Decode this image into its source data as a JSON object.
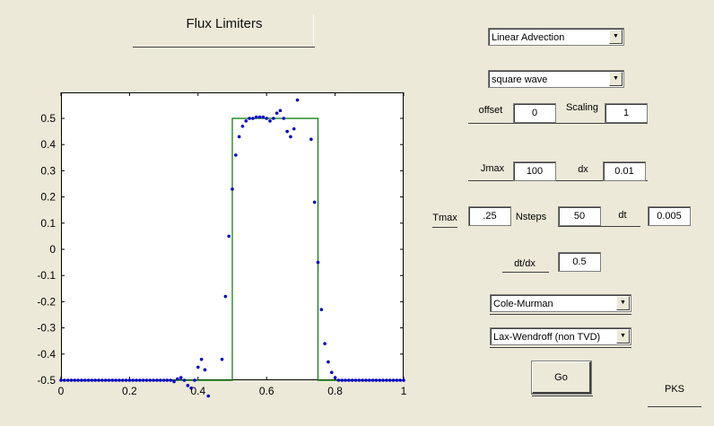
{
  "title": "Flux Limiters",
  "equation_select": "Linear Advection",
  "initial_select": "square wave",
  "offset": {
    "label": "offset",
    "value": "0"
  },
  "scaling": {
    "label": "Scaling",
    "value": "1"
  },
  "jmax": {
    "label": "Jmax",
    "value": "100"
  },
  "dx": {
    "label": "dx",
    "value": "0.01"
  },
  "tmax": {
    "label": "Tmax",
    "value": ".25"
  },
  "nsteps": {
    "label": "Nsteps",
    "value": "50"
  },
  "dt": {
    "label": "dt",
    "value": "0.005"
  },
  "dtdx": {
    "label": "dt/dx",
    "value": "0.5"
  },
  "limiter_select": "Cole-Murman",
  "scheme_select": "Lax-Wendroff (non TVD)",
  "go_label": "Go",
  "author": "PKS",
  "icons": {
    "dropdown": "chevron-down-icon"
  },
  "colors": {
    "exact": "#007700",
    "numerical": "#0000cc"
  },
  "chart_data": {
    "type": "scatter",
    "title": "",
    "xlabel": "",
    "ylabel": "",
    "xlim": [
      0,
      1
    ],
    "ylim": [
      -0.55,
      0.55
    ],
    "xticks": [
      "0",
      "0.2",
      "0.4",
      "0.6",
      "0.8",
      "1"
    ],
    "yticks": [
      "-0.5",
      "-0.4",
      "-0.3",
      "-0.2",
      "-0.1",
      "0",
      "0.1",
      "0.2",
      "0.3",
      "0.4",
      "0.5"
    ],
    "series": [
      {
        "style": "line",
        "x": [
          0,
          0.5,
          0.5,
          0.75,
          0.75,
          1
        ],
        "y": [
          -0.5,
          -0.5,
          0.5,
          0.5,
          -0.5,
          -0.5
        ]
      },
      {
        "style": "points",
        "x": [
          0.0,
          0.01,
          0.02,
          0.03,
          0.04,
          0.05,
          0.06,
          0.07,
          0.08,
          0.09,
          0.1,
          0.11,
          0.12,
          0.13,
          0.14,
          0.15,
          0.16,
          0.17,
          0.18,
          0.19,
          0.2,
          0.21,
          0.22,
          0.23,
          0.24,
          0.25,
          0.26,
          0.27,
          0.28,
          0.29,
          0.3,
          0.31,
          0.32,
          0.33,
          0.34,
          0.35,
          0.36,
          0.37,
          0.38,
          0.39,
          0.4,
          0.41,
          0.42,
          0.43,
          0.47,
          0.48,
          0.49,
          0.5,
          0.51,
          0.52,
          0.53,
          0.54,
          0.55,
          0.56,
          0.57,
          0.58,
          0.59,
          0.6,
          0.61,
          0.62,
          0.63,
          0.64,
          0.65,
          0.66,
          0.67,
          0.68,
          0.69,
          0.73,
          0.74,
          0.75,
          0.76,
          0.77,
          0.78,
          0.79,
          0.8,
          0.81,
          0.82,
          0.83,
          0.84,
          0.85,
          0.86,
          0.87,
          0.88,
          0.89,
          0.9,
          0.91,
          0.92,
          0.93,
          0.94,
          0.95,
          0.96,
          0.97,
          0.98,
          0.99,
          1.0
        ],
        "y": [
          -0.5,
          -0.5,
          -0.5,
          -0.5,
          -0.5,
          -0.5,
          -0.5,
          -0.5,
          -0.5,
          -0.5,
          -0.5,
          -0.5,
          -0.5,
          -0.5,
          -0.5,
          -0.5,
          -0.5,
          -0.5,
          -0.5,
          -0.5,
          -0.5,
          -0.5,
          -0.5,
          -0.5,
          -0.5,
          -0.5,
          -0.5,
          -0.5,
          -0.5,
          -0.5,
          -0.5,
          -0.5,
          -0.5,
          -0.505,
          -0.495,
          -0.49,
          -0.5,
          -0.52,
          -0.53,
          -0.5,
          -0.45,
          -0.42,
          -0.46,
          -0.56,
          -0.42,
          -0.18,
          0.05,
          0.23,
          0.36,
          0.43,
          0.47,
          0.49,
          0.5,
          0.5,
          0.505,
          0.505,
          0.505,
          0.5,
          0.49,
          0.5,
          0.52,
          0.53,
          0.5,
          0.45,
          0.43,
          0.46,
          0.57,
          0.42,
          0.18,
          -0.05,
          -0.23,
          -0.36,
          -0.43,
          -0.47,
          -0.49,
          -0.5,
          -0.5,
          -0.5,
          -0.5,
          -0.5,
          -0.5,
          -0.5,
          -0.5,
          -0.5,
          -0.5,
          -0.5,
          -0.5,
          -0.5,
          -0.5,
          -0.5,
          -0.5,
          -0.5,
          -0.5,
          -0.5,
          -0.5
        ]
      }
    ],
    "grid": false
  }
}
